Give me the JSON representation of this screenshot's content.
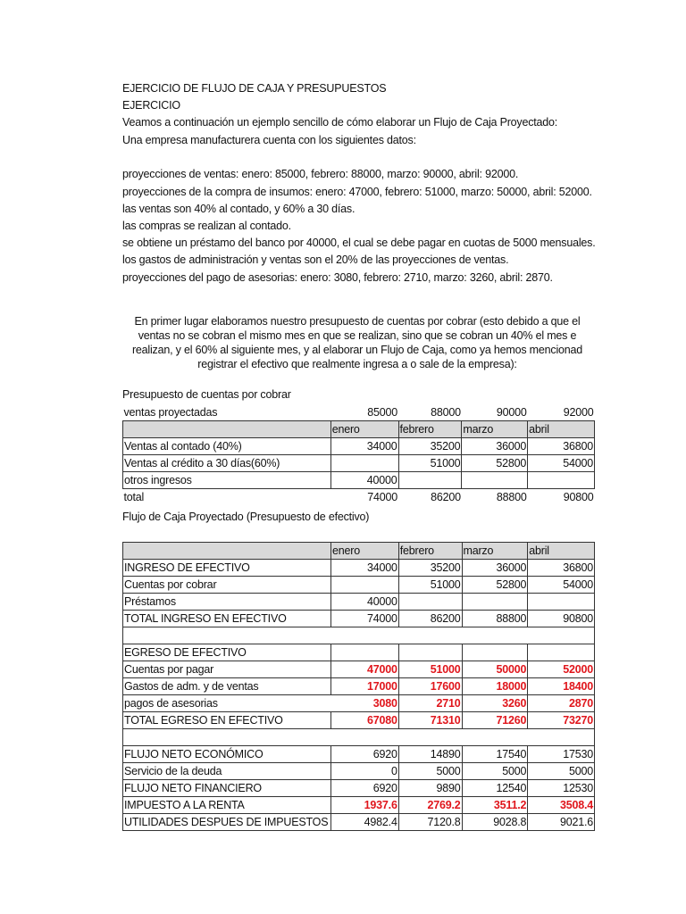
{
  "intro": {
    "lines": [
      "EJERCICIO DE FLUJO DE CAJA Y PRESUPUESTOS",
      "EJERCICIO",
      "Veamos a continuación un ejemplo sencillo de cómo elaborar un Flujo de Caja Proyectado:",
      "Una empresa manufacturera cuenta con los siguientes datos:",
      "proyecciones de ventas: enero: 85000, febrero: 88000, marzo: 90000, abril: 92000.",
      "proyecciones de la compra de insumos: enero: 47000, febrero: 51000, marzo: 50000, abril: 52000.",
      "las ventas son 40% al contado, y 60% a 30 días.",
      "las compras se realizan al contado.",
      "se obtiene un préstamo del banco por 40000, el cual se debe pagar en cuotas de 5000 mensuales.",
      "los gastos de administración y ventas son el 20% de las proyecciones de ventas.",
      "proyecciones del pago de asesorias: enero: 3080, febrero: 2710, marzo: 3260, abril: 2870."
    ]
  },
  "paragraph": [
    "En primer lugar elaboramos nuestro presupuesto de cuentas por cobrar (esto debido a que el",
    "ventas no se cobran el mismo mes en que se realizan, sino que se cobran un 40% el mes e",
    "realizan, y el 60% al siguiente mes, y al elaborar un Flujo de Caja, como ya hemos mencionad",
    "registrar el efectivo que realmente ingresa a o sale de la empresa):"
  ],
  "cobrar": {
    "title": "Presupuesto de cuentas por cobrar",
    "rows": [
      {
        "style": "plain",
        "label": "ventas proyectadas",
        "values": [
          "85000",
          "88000",
          "90000",
          "92000"
        ]
      },
      {
        "style": "head",
        "label": "",
        "values": [
          "enero",
          "febrero",
          "marzo",
          "abril"
        ]
      },
      {
        "style": "",
        "label": "Ventas al contado (40%)",
        "values": [
          "34000",
          "35200",
          "36000",
          "36800"
        ]
      },
      {
        "style": "",
        "label": "Ventas al crédito a 30 días(60%)",
        "values": [
          "",
          "51000",
          "52800",
          "54000"
        ]
      },
      {
        "style": "",
        "label": "otros ingresos",
        "values": [
          "40000",
          "",
          "",
          ""
        ]
      },
      {
        "style": "plain",
        "label": "total",
        "values": [
          "74000",
          "86200",
          "88800",
          "90800"
        ]
      }
    ]
  },
  "flujo": {
    "title": "Flujo de Caja Proyectado (Presupuesto de efectivo)",
    "rows": [
      {
        "style": "head",
        "label": "",
        "values": [
          "enero",
          "febrero",
          "marzo",
          "abril"
        ]
      },
      {
        "style": "",
        "label": "INGRESO DE EFECTIVO",
        "values": [
          "34000",
          "35200",
          "36000",
          "36800"
        ]
      },
      {
        "style": "",
        "label": "Cuentas por cobrar",
        "values": [
          "",
          "51000",
          "52800",
          "54000"
        ]
      },
      {
        "style": "",
        "label": "Préstamos",
        "values": [
          "40000",
          "",
          "",
          ""
        ]
      },
      {
        "style": "",
        "label": "TOTAL INGRESO EN EFECTIVO",
        "values": [
          "74000",
          "86200",
          "88800",
          "90800"
        ]
      },
      {
        "style": "blank",
        "label": "",
        "values": []
      },
      {
        "style": "",
        "label": "EGRESO DE EFECTIVO",
        "values": [
          "",
          "",
          "",
          ""
        ]
      },
      {
        "style": "red",
        "label": "Cuentas por pagar",
        "values": [
          "47000",
          "51000",
          "50000",
          "52000"
        ]
      },
      {
        "style": "red",
        "label": "Gastos de adm. y de ventas",
        "values": [
          "17000",
          "17600",
          "18000",
          "18400"
        ]
      },
      {
        "style": "red nosep",
        "label": "pagos de asesorias",
        "values": [
          "3080",
          "2710",
          "3260",
          "2870"
        ]
      },
      {
        "style": "red",
        "label": "TOTAL EGRESO EN EFECTIVO",
        "values": [
          "67080",
          "71310",
          "71260",
          "73270"
        ]
      },
      {
        "style": "blank",
        "label": "",
        "values": []
      },
      {
        "style": "",
        "label": "FLUJO NETO ECONÓMICO",
        "values": [
          "6920",
          "14890",
          "17540",
          "17530"
        ]
      },
      {
        "style": "",
        "label": "Servicio de la deuda",
        "values": [
          "0",
          "5000",
          "5000",
          "5000"
        ]
      },
      {
        "style": "",
        "label": "FLUJO NETO FINANCIERO",
        "values": [
          "6920",
          "9890",
          "12540",
          "12530"
        ]
      },
      {
        "style": "red",
        "label": "IMPUESTO A LA RENTA",
        "values": [
          "1937.6",
          "2769.2",
          "3511.2",
          "3508.4"
        ]
      },
      {
        "style": "",
        "label": "UTILIDADES DESPUES DE IMPUESTOS",
        "values": [
          "4982.4",
          "7120.8",
          "9028.8",
          "9021.6"
        ]
      }
    ]
  }
}
